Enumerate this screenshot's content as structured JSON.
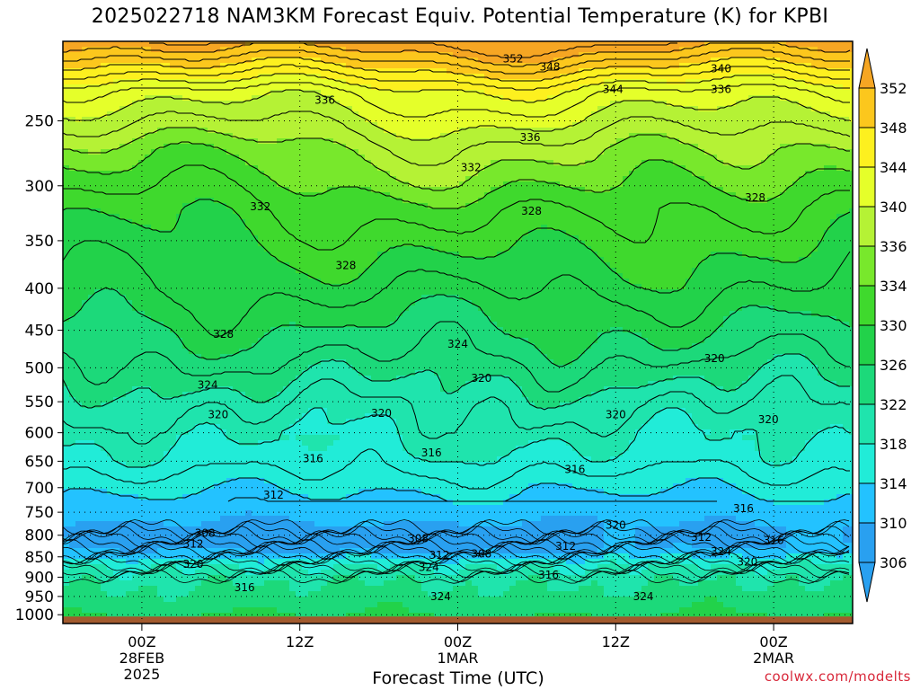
{
  "chart_data": {
    "type": "heatmap",
    "title": "2025022718 NAM3KM Forecast Equiv. Potential Temperature (K) for KPBI",
    "xlabel": "Forecast Time (UTC)",
    "ylabel": "",
    "credit": "coolwx.com/modelts",
    "x_ticks": [
      {
        "label": [
          "00Z",
          "28FEB",
          "2025"
        ],
        "hour": 6
      },
      {
        "label": [
          "12Z"
        ],
        "hour": 18
      },
      {
        "label": [
          "00Z",
          "1MAR"
        ],
        "hour": 30
      },
      {
        "label": [
          "12Z"
        ],
        "hour": 42
      },
      {
        "label": [
          "00Z",
          "2MAR"
        ],
        "hour": 54
      }
    ],
    "x_range_hours": [
      0,
      60
    ],
    "y_axis": "pressure (hPa), reversed, log scale",
    "y_ticks": [
      250,
      300,
      350,
      400,
      450,
      500,
      550,
      600,
      650,
      700,
      750,
      800,
      850,
      900,
      950,
      1000
    ],
    "y_range": [
      200,
      1025
    ],
    "colorbar": {
      "levels": [
        352,
        348,
        344,
        340,
        336,
        334,
        330,
        326,
        322,
        318,
        314,
        310,
        306
      ],
      "colors": [
        "#f6a623",
        "#fcc71d",
        "#fdf01f",
        "#e5ff2a",
        "#b5f235",
        "#78e82c",
        "#3fd92d",
        "#22d24a",
        "#1cd97a",
        "#1fe4ad",
        "#21ecd8",
        "#23c2ff",
        "#29a0f0"
      ]
    },
    "contour_labels": [
      {
        "text": "352",
        "hour": 34.2,
        "p": 210
      },
      {
        "text": "348",
        "hour": 37.0,
        "p": 215
      },
      {
        "text": "340",
        "hour": 50.0,
        "p": 216
      },
      {
        "text": "344",
        "hour": 41.8,
        "p": 229
      },
      {
        "text": "336",
        "hour": 50.0,
        "p": 229
      },
      {
        "text": "336",
        "hour": 19.9,
        "p": 236
      },
      {
        "text": "336",
        "hour": 35.5,
        "p": 262
      },
      {
        "text": "332",
        "hour": 31.0,
        "p": 285
      },
      {
        "text": "332",
        "hour": 15.0,
        "p": 318
      },
      {
        "text": "328",
        "hour": 35.6,
        "p": 322
      },
      {
        "text": "328",
        "hour": 52.6,
        "p": 310
      },
      {
        "text": "328",
        "hour": 21.5,
        "p": 375
      },
      {
        "text": "328",
        "hour": 12.2,
        "p": 455
      },
      {
        "text": "324",
        "hour": 30.0,
        "p": 468
      },
      {
        "text": "320",
        "hour": 49.5,
        "p": 487
      },
      {
        "text": "324",
        "hour": 11.0,
        "p": 525
      },
      {
        "text": "320",
        "hour": 31.8,
        "p": 515
      },
      {
        "text": "320",
        "hour": 11.8,
        "p": 570
      },
      {
        "text": "320",
        "hour": 24.2,
        "p": 568
      },
      {
        "text": "320",
        "hour": 42.0,
        "p": 570
      },
      {
        "text": "320",
        "hour": 53.6,
        "p": 578
      },
      {
        "text": "316",
        "hour": 19.0,
        "p": 645
      },
      {
        "text": "316",
        "hour": 28.0,
        "p": 635
      },
      {
        "text": "316",
        "hour": 38.9,
        "p": 665
      },
      {
        "text": "312",
        "hour": 16.0,
        "p": 715
      },
      {
        "text": "316",
        "hour": 51.7,
        "p": 742
      },
      {
        "text": "320",
        "hour": 42.0,
        "p": 778
      },
      {
        "text": "308",
        "hour": 10.8,
        "p": 796
      },
      {
        "text": "312",
        "hour": 9.9,
        "p": 820
      },
      {
        "text": "308",
        "hour": 27.0,
        "p": 808
      },
      {
        "text": "312",
        "hour": 38.2,
        "p": 825
      },
      {
        "text": "312",
        "hour": 48.5,
        "p": 805
      },
      {
        "text": "316",
        "hour": 54.0,
        "p": 812
      },
      {
        "text": "312",
        "hour": 28.6,
        "p": 846
      },
      {
        "text": "308",
        "hour": 31.8,
        "p": 843
      },
      {
        "text": "324",
        "hour": 50.0,
        "p": 838
      },
      {
        "text": "320",
        "hour": 9.9,
        "p": 868
      },
      {
        "text": "324",
        "hour": 27.8,
        "p": 876
      },
      {
        "text": "320",
        "hour": 52.0,
        "p": 862
      },
      {
        "text": "316",
        "hour": 36.9,
        "p": 895
      },
      {
        "text": "316",
        "hour": 13.8,
        "p": 927
      },
      {
        "text": "324",
        "hour": 28.7,
        "p": 950
      },
      {
        "text": "324",
        "hour": 44.1,
        "p": 950
      }
    ]
  }
}
